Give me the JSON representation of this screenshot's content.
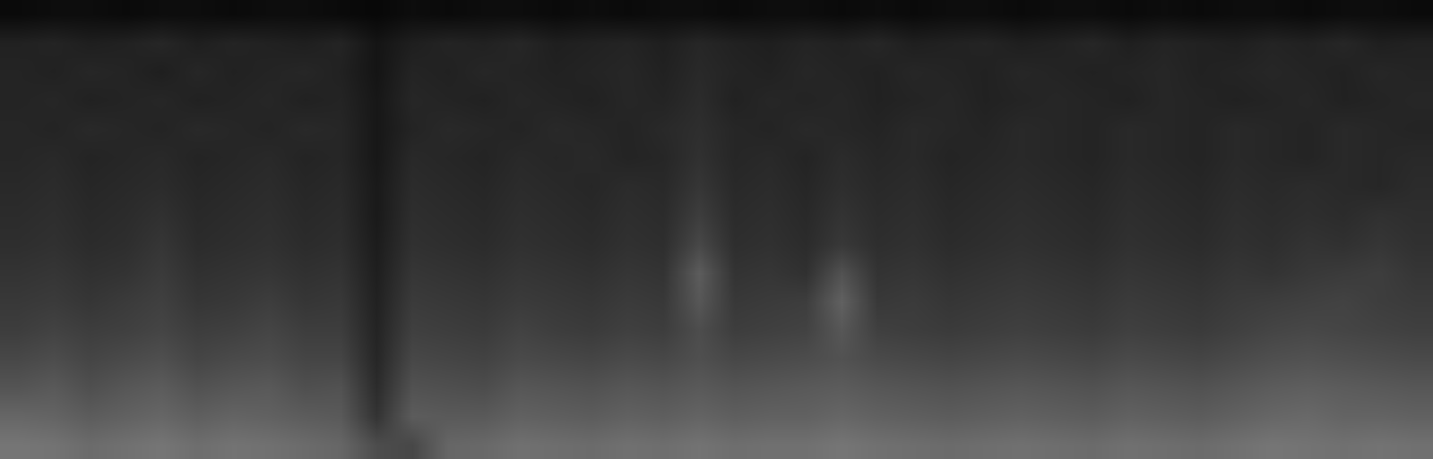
{
  "chart_data": {
    "type": "heatmap",
    "tick_labels": false,
    "zlim": [
      0,
      100
    ],
    "cells": [
      [
        4,
        5,
        5,
        4,
        5,
        5,
        4,
        5,
        5,
        4,
        3,
        5,
        4,
        5,
        5,
        4,
        5,
        4,
        5,
        5,
        4,
        5,
        5,
        4,
        5,
        4,
        5,
        5,
        4,
        5,
        5,
        4,
        5,
        4,
        5,
        5,
        4,
        5,
        5,
        4
      ],
      [
        13,
        14,
        12,
        13,
        15,
        12,
        14,
        13,
        12,
        14,
        8,
        12,
        14,
        13,
        15,
        12,
        13,
        14,
        12,
        15,
        13,
        12,
        14,
        13,
        15,
        12,
        13,
        14,
        12,
        13,
        15,
        12,
        14,
        13,
        12,
        14,
        13,
        15,
        12,
        13
      ],
      [
        14,
        13,
        15,
        14,
        12,
        15,
        13,
        14,
        15,
        13,
        8,
        14,
        13,
        15,
        14,
        13,
        14,
        15,
        13,
        16,
        14,
        13,
        15,
        14,
        13,
        15,
        14,
        13,
        15,
        14,
        13,
        14,
        15,
        13,
        14,
        15,
        14,
        13,
        15,
        14
      ],
      [
        14,
        15,
        13,
        14,
        15,
        13,
        14,
        15,
        13,
        14,
        9,
        15,
        14,
        13,
        15,
        14,
        13,
        15,
        14,
        17,
        13,
        15,
        14,
        15,
        13,
        14,
        15,
        13,
        14,
        15,
        14,
        13,
        15,
        14,
        13,
        14,
        15,
        13,
        14,
        15
      ],
      [
        15,
        14,
        16,
        15,
        14,
        16,
        15,
        14,
        16,
        15,
        9,
        14,
        16,
        15,
        14,
        16,
        15,
        14,
        16,
        18,
        15,
        14,
        16,
        15,
        14,
        16,
        15,
        14,
        16,
        15,
        14,
        16,
        15,
        14,
        16,
        15,
        14,
        16,
        15,
        14
      ],
      [
        15,
        16,
        14,
        15,
        16,
        14,
        15,
        16,
        14,
        15,
        9,
        16,
        15,
        14,
        16,
        15,
        16,
        14,
        15,
        19,
        15,
        16,
        14,
        17,
        15,
        16,
        14,
        15,
        16,
        15,
        14,
        16,
        15,
        14,
        16,
        15,
        14,
        16,
        15,
        16
      ],
      [
        16,
        17,
        15,
        16,
        17,
        15,
        16,
        17,
        15,
        16,
        10,
        17,
        16,
        15,
        17,
        16,
        15,
        17,
        16,
        21,
        16,
        17,
        15,
        18,
        16,
        17,
        15,
        16,
        17,
        16,
        15,
        17,
        16,
        15,
        17,
        16,
        17,
        16,
        15,
        17
      ],
      [
        17,
        18,
        16,
        17,
        19,
        16,
        17,
        18,
        16,
        17,
        10,
        18,
        17,
        16,
        18,
        17,
        16,
        18,
        17,
        24,
        17,
        18,
        16,
        20,
        17,
        18,
        16,
        17,
        18,
        17,
        16,
        18,
        17,
        16,
        18,
        17,
        18,
        17,
        19,
        18
      ],
      [
        18,
        19,
        17,
        18,
        21,
        17,
        18,
        19,
        17,
        18,
        11,
        19,
        18,
        17,
        19,
        18,
        17,
        19,
        18,
        28,
        18,
        19,
        17,
        22,
        18,
        19,
        17,
        18,
        19,
        18,
        17,
        19,
        18,
        17,
        19,
        18,
        20,
        19,
        21,
        19
      ],
      [
        20,
        21,
        19,
        20,
        23,
        19,
        20,
        21,
        19,
        20,
        12,
        21,
        20,
        19,
        21,
        20,
        19,
        21,
        20,
        36,
        20,
        21,
        19,
        32,
        20,
        21,
        19,
        20,
        21,
        20,
        19,
        21,
        20,
        19,
        21,
        20,
        22,
        23,
        24,
        21
      ],
      [
        22,
        23,
        21,
        23,
        25,
        21,
        22,
        24,
        21,
        22,
        13,
        23,
        22,
        21,
        23,
        22,
        21,
        23,
        22,
        34,
        22,
        23,
        24,
        38,
        22,
        23,
        21,
        22,
        23,
        22,
        21,
        23,
        22,
        21,
        23,
        24,
        25,
        26,
        24,
        23
      ],
      [
        24,
        26,
        24,
        25,
        27,
        24,
        25,
        27,
        24,
        24,
        14,
        25,
        24,
        23,
        26,
        24,
        23,
        25,
        24,
        30,
        24,
        25,
        26,
        34,
        25,
        24,
        23,
        24,
        25,
        24,
        23,
        25,
        24,
        23,
        25,
        27,
        28,
        27,
        26,
        25
      ],
      [
        28,
        30,
        27,
        29,
        31,
        27,
        29,
        30,
        27,
        27,
        15,
        28,
        27,
        26,
        29,
        28,
        27,
        29,
        28,
        31,
        28,
        29,
        30,
        32,
        29,
        28,
        27,
        28,
        29,
        28,
        27,
        29,
        28,
        27,
        29,
        31,
        32,
        31,
        30,
        29
      ],
      [
        33,
        35,
        31,
        34,
        36,
        32,
        34,
        35,
        31,
        32,
        17,
        32,
        31,
        30,
        34,
        33,
        32,
        34,
        33,
        35,
        33,
        34,
        35,
        36,
        34,
        33,
        32,
        33,
        34,
        33,
        32,
        34,
        33,
        32,
        34,
        36,
        37,
        36,
        35,
        34
      ],
      [
        40,
        39,
        36,
        38,
        40,
        37,
        39,
        38,
        36,
        35,
        20,
        36,
        35,
        35,
        38,
        37,
        36,
        38,
        37,
        39,
        37,
        38,
        38,
        40,
        38,
        37,
        36,
        37,
        38,
        37,
        36,
        38,
        37,
        36,
        38,
        40,
        41,
        39,
        39,
        38
      ],
      [
        46,
        45,
        42,
        44,
        46,
        43,
        45,
        44,
        42,
        40,
        30,
        28,
        40,
        41,
        44,
        43,
        42,
        44,
        43,
        45,
        43,
        44,
        44,
        46,
        44,
        43,
        42,
        43,
        44,
        43,
        42,
        44,
        43,
        42,
        44,
        46,
        45,
        44,
        45,
        44
      ]
    ]
  }
}
